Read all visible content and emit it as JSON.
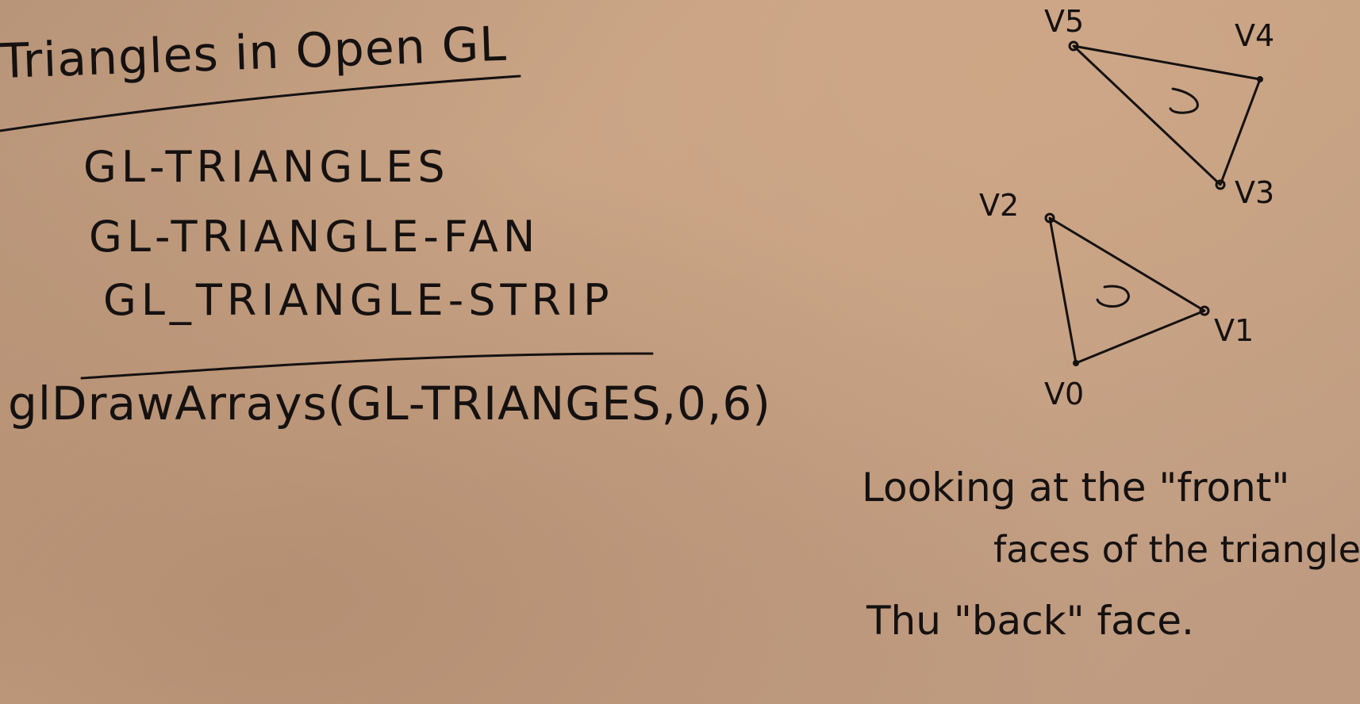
{
  "board": {
    "title": "Triangles in Open GL",
    "primitive_modes": [
      "GL-TRIANGLES",
      "GL-TRIANGLE-FAN",
      "GL_TRIANGLE-STRIP"
    ],
    "draw_call": "glDrawArrays(GL-TRIANGES,0,6)",
    "notes": [
      "Looking at the \"front\"",
      "faces of the triangle",
      "Thu \"back\" face."
    ],
    "vertex_labels": {
      "v0": "V0",
      "v1": "V1",
      "v2": "V2",
      "v3": "V3",
      "v4": "V4",
      "v5": "V5"
    }
  },
  "colors": {
    "board": "#c49f83",
    "ink": "#151111"
  },
  "icons": {
    "winding_arrow": "counterclockwise-arrow-icon"
  }
}
